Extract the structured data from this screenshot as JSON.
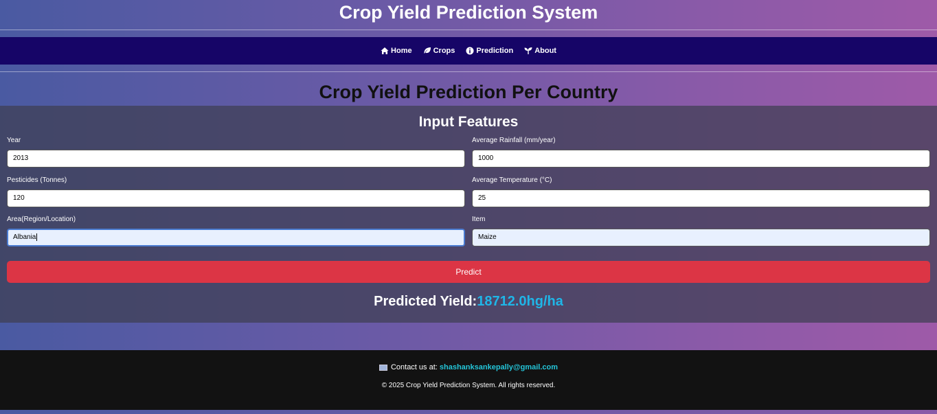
{
  "header": {
    "title": "Crop Yield Prediction System"
  },
  "nav": {
    "items": [
      {
        "label": "Home",
        "icon": "home-icon"
      },
      {
        "label": "Crops",
        "icon": "leaf-icon"
      },
      {
        "label": "Prediction",
        "icon": "info-icon"
      },
      {
        "label": "About",
        "icon": "seedling-icon"
      }
    ]
  },
  "main": {
    "heading": "Crop Yield Prediction Per Country",
    "panel_title": "Input Features",
    "fields": {
      "year": {
        "label": "Year",
        "value": "2013"
      },
      "rainfall": {
        "label": "Average Rainfall (mm/year)",
        "value": "1000"
      },
      "pesticides": {
        "label": "Pesticides (Tonnes)",
        "value": "120"
      },
      "temperature": {
        "label": "Average Temperature (°C)",
        "value": "25"
      },
      "area": {
        "label": "Area(Region/Location)",
        "value": "Albania"
      },
      "item": {
        "label": "Item",
        "value": "Maize"
      }
    },
    "predict_label": "Predict",
    "result_label": "Predicted Yield:",
    "result_value": "18712.0hg/ha"
  },
  "footer": {
    "contact_prefix": "Contact us at:",
    "email": "shashanksankepally@gmail.com",
    "copyright": "© 2025 Crop Yield Prediction System. All rights reserved."
  },
  "colors": {
    "nav_bg": "#160567",
    "predict_button": "#dc3545",
    "result_accent": "#1fb6e8",
    "footer_bg": "#121212"
  }
}
